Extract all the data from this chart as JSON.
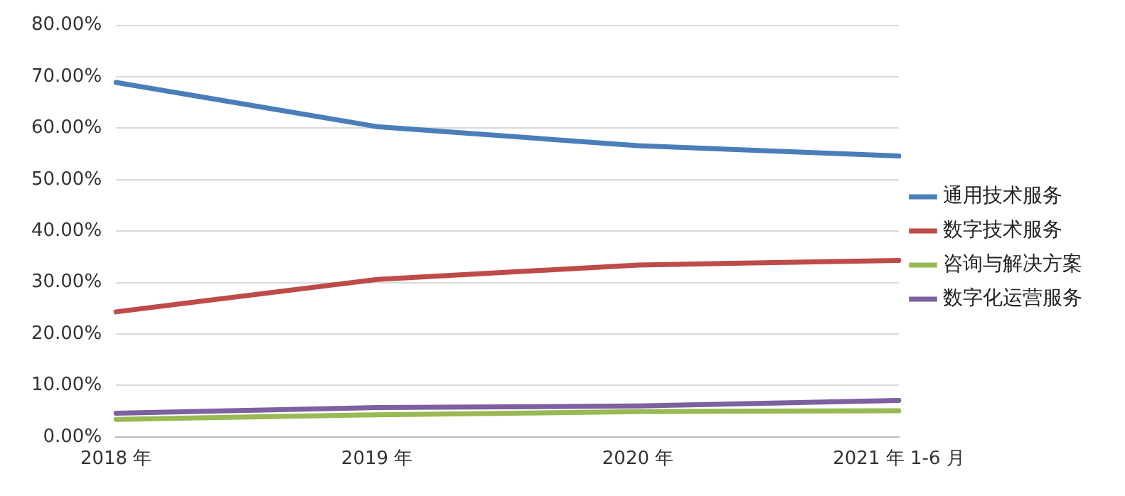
{
  "chart_data": {
    "type": "line",
    "categories": [
      "2018 年",
      "2019 年",
      "2020 年",
      "2021 年 1-6 月"
    ],
    "series": [
      {
        "name": "通用技术服务",
        "color": "#4a7ebb",
        "values": [
          68.9,
          60.3,
          56.6,
          54.6
        ]
      },
      {
        "name": "数字技术服务",
        "color": "#be4b48",
        "values": [
          24.3,
          30.6,
          33.4,
          34.3
        ]
      },
      {
        "name": "咨询与解决方案",
        "color": "#98b954",
        "values": [
          3.4,
          4.3,
          4.9,
          5.1
        ]
      },
      {
        "name": "数字化运营服务",
        "color": "#7d60a0",
        "values": [
          4.6,
          5.7,
          6.0,
          7.1
        ]
      }
    ],
    "ylim": [
      0,
      80
    ],
    "yticks": [
      {
        "value": 0,
        "label": "0.00%"
      },
      {
        "value": 10,
        "label": "10.00%"
      },
      {
        "value": 20,
        "label": "20.00%"
      },
      {
        "value": 30,
        "label": "30.00%"
      },
      {
        "value": 40,
        "label": "40.00%"
      },
      {
        "value": 50,
        "label": "50.00%"
      },
      {
        "value": 60,
        "label": "60.00%"
      },
      {
        "value": 70,
        "label": "70.00%"
      },
      {
        "value": 80,
        "label": "80.00%"
      }
    ],
    "grid": "y",
    "legend": "right",
    "marker": "none",
    "line_style": "solid"
  }
}
